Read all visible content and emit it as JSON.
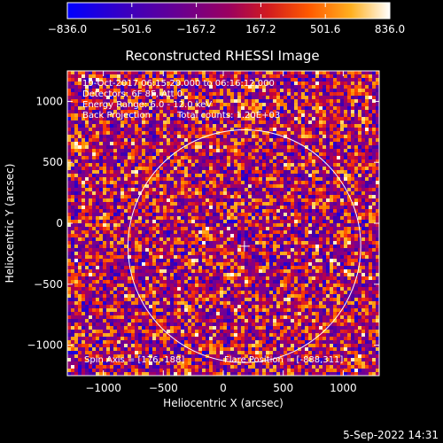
{
  "chart_data": {
    "type": "heatmap",
    "title": "Reconstructed RHESSI Image",
    "xlabel": "Heliocentric X (arcsec)",
    "ylabel": "Heliocentric Y (arcsec)",
    "xlim": [
      -1300,
      1300
    ],
    "ylim": [
      -1250,
      1250
    ],
    "xticks": [
      -1000,
      -500,
      0,
      500,
      1000
    ],
    "xtick_labels": [
      "−1000",
      "−500",
      "0",
      "500",
      "1000"
    ],
    "yticks": [
      -1000,
      -500,
      0,
      500,
      1000
    ],
    "ytick_labels": [
      "−1000",
      "−500",
      "0",
      "500",
      "1000"
    ],
    "colorbar": {
      "min": -836.0,
      "max": 836.0,
      "ticks": [
        -836.0,
        -501.6,
        -167.2,
        167.2,
        501.6,
        836.0
      ],
      "tick_labels": [
        "−836.0",
        "−501.6",
        "−167.2",
        "167.2",
        "501.6",
        "836.0"
      ],
      "colors": [
        "#0000ff",
        "#4a00a0",
        "#7a0090",
        "#c00040",
        "#ff4000",
        "#ff9000",
        "#ffd050",
        "#ffffff"
      ]
    },
    "annotations": [
      "19-Oct-2017 06:15:20.000 to 06:16:12.000",
      "Detectors: 6F 8F, Att 0",
      "Energy Range: 6.0 - 12.0 keV",
      "Back Projection",
      "Total counts: 1.20E+03"
    ],
    "footer_left": "Spin Axis = [176,-188]",
    "footer_right": "Flare Position = [-888,311]",
    "solar_limb_radius": 970,
    "sun_center_marker": [
      176,
      -188
    ],
    "grid": false
  },
  "timestamp": "5-Sep-2022 14:31"
}
